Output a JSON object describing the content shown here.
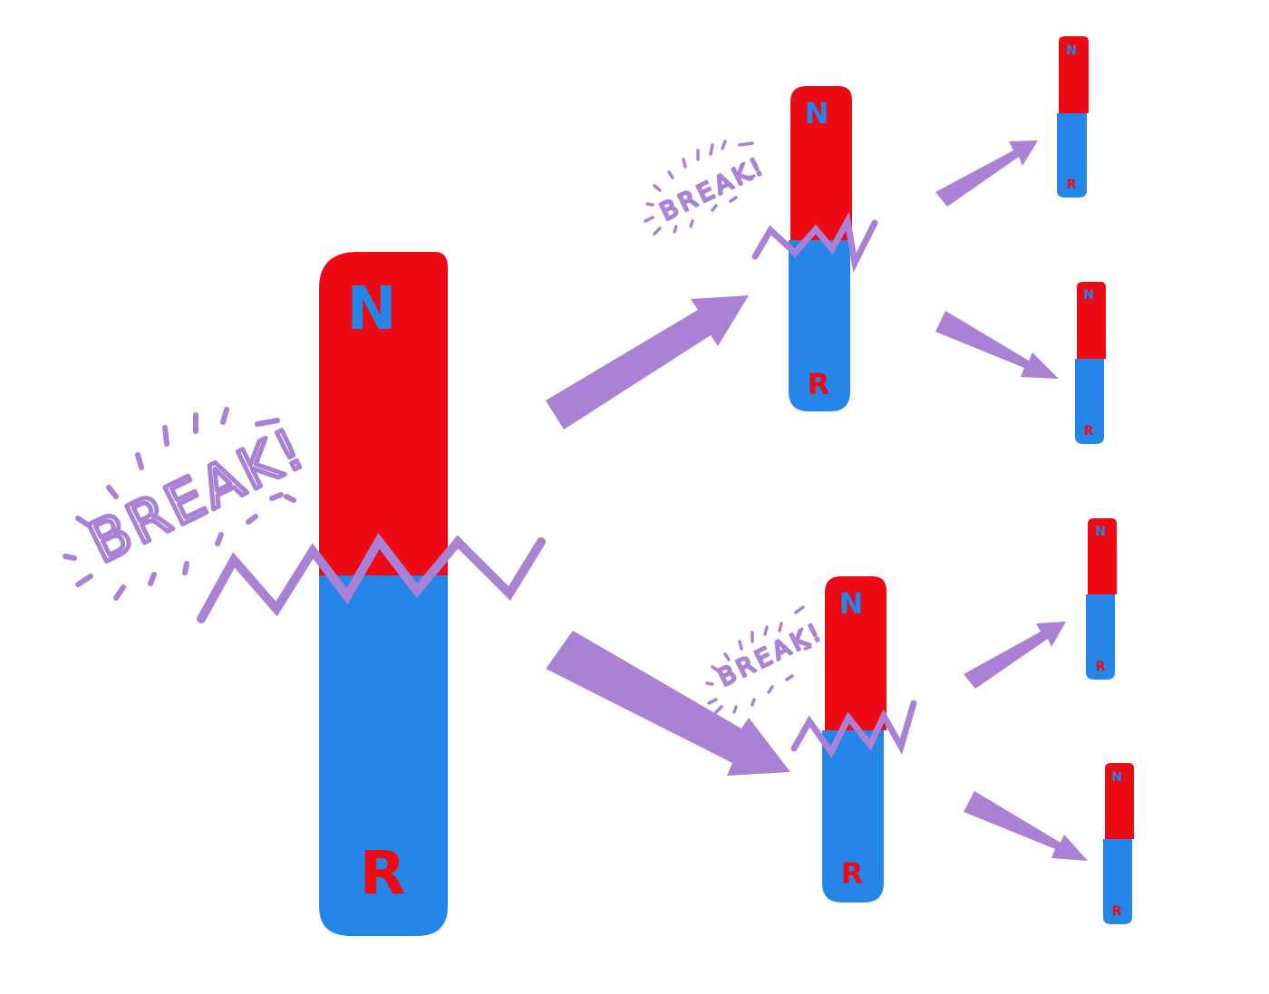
{
  "colors": {
    "north": "#ee0a14",
    "south": "#2585e8",
    "accent": "#a982d6",
    "background": "#ffffff"
  },
  "magnets": {
    "big": {
      "north_label": "N",
      "south_label": "R"
    },
    "mid_top": {
      "north_label": "N",
      "south_label": "R"
    },
    "mid_bottom": {
      "north_label": "N",
      "south_label": "R"
    },
    "small_1": {
      "north_label": "N",
      "south_label": "R"
    },
    "small_2": {
      "north_label": "N",
      "south_label": "R"
    },
    "small_3": {
      "north_label": "N",
      "south_label": "R"
    },
    "small_4": {
      "north_label": "N",
      "south_label": "R"
    }
  },
  "breaks": {
    "big": "BREAK!",
    "mid_top": "BREAK!",
    "mid_bottom": "BREAK!"
  }
}
